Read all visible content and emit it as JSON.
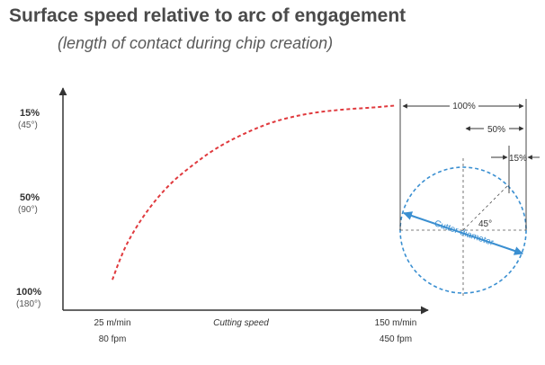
{
  "chart_data": {
    "type": "line",
    "title": "Surface speed relative to arc of engagement",
    "subtitle": "(length of contact during chip creation)",
    "xlabel": "Cutting speed",
    "x_ticks": [
      {
        "value": 25,
        "label": "25 m/min",
        "sublabel": "80 fpm"
      },
      {
        "value": 150,
        "label": "150 m/min",
        "sublabel": "450 fpm"
      }
    ],
    "y_ticks": [
      {
        "value": 15,
        "label": "15%",
        "sublabel": "(45°)"
      },
      {
        "value": 50,
        "label": "50%",
        "sublabel": "(90°)"
      },
      {
        "value": 100,
        "label": "100%",
        "sublabel": "(180°)"
      }
    ],
    "xlim": [
      15,
      165
    ],
    "y_reversed": true,
    "series": [
      {
        "style": "dashed",
        "color": "#e03a3e",
        "points": [
          [
            25,
            97
          ],
          [
            28,
            88
          ],
          [
            32,
            78
          ],
          [
            40,
            64
          ],
          [
            50,
            51
          ],
          [
            60,
            42
          ],
          [
            70,
            34
          ],
          [
            82,
            27
          ],
          [
            95,
            21
          ],
          [
            110,
            17
          ],
          [
            125,
            15
          ],
          [
            140,
            14
          ],
          [
            150,
            13
          ]
        ]
      }
    ],
    "diagram": {
      "labels": {
        "full": "100%",
        "half": "50%",
        "small": "15%"
      },
      "angle_label": "45°",
      "cutter_label": "Cutter diameter",
      "cutter_color": "#3a8fd1"
    }
  }
}
